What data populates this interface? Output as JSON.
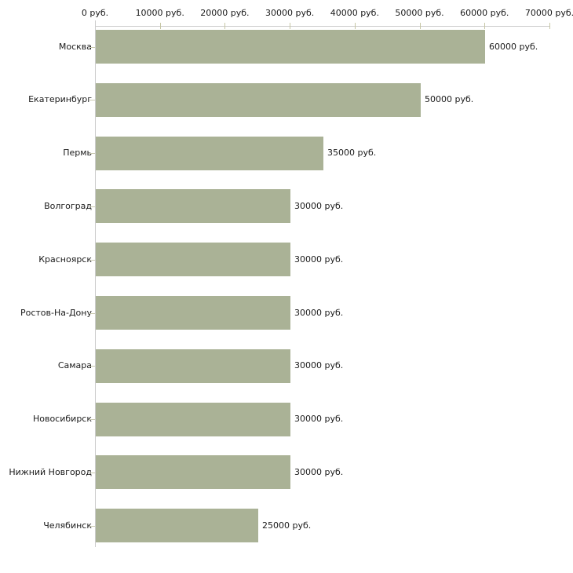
{
  "chart_data": {
    "type": "bar",
    "orientation": "horizontal",
    "title": "",
    "xlabel": "",
    "ylabel": "",
    "unit": "руб.",
    "categories": [
      "Москва",
      "Екатеринбург",
      "Пермь",
      "Волгоград",
      "Красноярск",
      "Ростов-На-Дону",
      "Самара",
      "Новосибирск",
      "Нижний Новгород",
      "Челябинск"
    ],
    "values": [
      60000,
      50000,
      35000,
      30000,
      30000,
      30000,
      30000,
      30000,
      30000,
      25000
    ],
    "value_labels": [
      "60000 руб.",
      "50000 руб.",
      "35000 руб.",
      "30000 руб.",
      "30000 руб.",
      "30000 руб.",
      "30000 руб.",
      "30000 руб.",
      "30000 руб.",
      "25000 руб."
    ],
    "x_ticks": [
      0,
      10000,
      20000,
      30000,
      40000,
      50000,
      60000,
      70000
    ],
    "x_tick_labels": [
      "0 руб.",
      "10000 руб.",
      "20000 руб.",
      "30000 руб.",
      "40000 руб.",
      "50000 руб.",
      "60000 руб.",
      "70000 руб."
    ],
    "xlim": [
      0,
      70000
    ],
    "grid": false,
    "legend": false,
    "axis_position": "top",
    "colors": {
      "bar": "#aab296",
      "axis_line": "#cccccc",
      "value_tick": "#c6c6a4",
      "category_tick": "#c9c9b0",
      "text": "#1a1a1a",
      "background": "#ffffff"
    }
  }
}
